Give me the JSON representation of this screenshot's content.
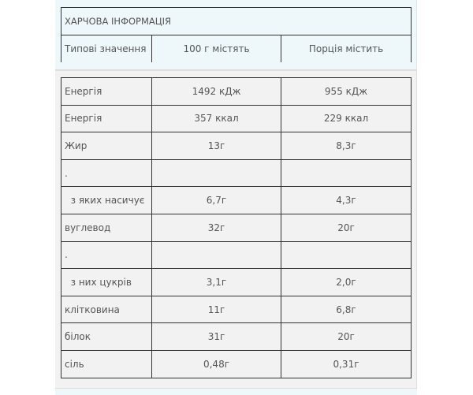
{
  "header": {
    "title": "ХАРЧОВА ІНФОРМАЦІЯ",
    "columns": [
      "Типові значення",
      "100 г містять",
      "Порція містить"
    ]
  },
  "rows": [
    {
      "name": "Енергія",
      "per100": "1492 кДж",
      "portion": "955 кДж"
    },
    {
      "name": "Енергія",
      "per100": "357 ккал",
      "portion": "229 ккал"
    },
    {
      "name": "Жир",
      "per100": "13г",
      "portion": "8,3г"
    },
    {
      "name": ".",
      "per100": "",
      "portion": ""
    },
    {
      "name": "  з яких насичує",
      "per100": "6,7г",
      "portion": "4,3г"
    },
    {
      "name": "вуглевод",
      "per100": "32г",
      "portion": "20г"
    },
    {
      "name": ".",
      "per100": "",
      "portion": ""
    },
    {
      "name": "  з них цукрів",
      "per100": "3,1г",
      "portion": "2,0г"
    },
    {
      "name": "клітковина",
      "per100": "11г",
      "portion": "6,8г"
    },
    {
      "name": "білок",
      "per100": "31г",
      "portion": "20г"
    },
    {
      "name": "сіль",
      "per100": "0,48г",
      "portion": "0,31г"
    }
  ]
}
